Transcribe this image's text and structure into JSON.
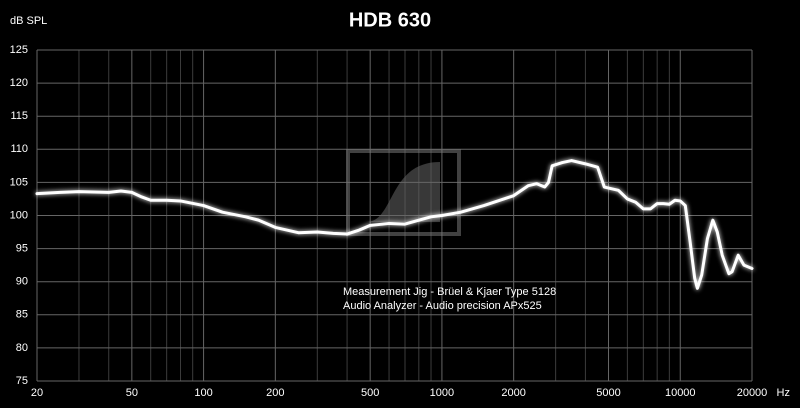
{
  "chart_data": {
    "type": "line",
    "title": "HDB 630",
    "ylabel": "dB SPL",
    "xlabel": "Hz",
    "annotations": [
      "Measurement Jig -  Brüel & Kjaer Type 5128",
      "Audio Analyzer - Audio precision APx525"
    ],
    "log_x": true,
    "grid": true,
    "xlim": [
      20,
      20000
    ],
    "ylim": [
      75,
      125
    ],
    "xticks": [
      20,
      50,
      100,
      200,
      500,
      1000,
      2000,
      5000,
      10000,
      20000
    ],
    "x_minor_grid": [
      30,
      40,
      60,
      70,
      80,
      90,
      300,
      400,
      600,
      700,
      800,
      900,
      3000,
      4000,
      6000,
      7000,
      8000,
      9000
    ],
    "yticks": [
      75,
      80,
      85,
      90,
      95,
      100,
      105,
      110,
      115,
      120,
      125
    ],
    "x": [
      20,
      25,
      30,
      40,
      45,
      50,
      55,
      60,
      70,
      80,
      100,
      120,
      150,
      170,
      200,
      250,
      300,
      350,
      400,
      450,
      500,
      600,
      700,
      800,
      900,
      1000,
      1200,
      1500,
      2000,
      2300,
      2500,
      2700,
      2800,
      2900,
      3200,
      3500,
      4000,
      4500,
      4800,
      5500,
      6000,
      6500,
      7000,
      7500,
      8000,
      8500,
      9000,
      9500,
      10000,
      10500,
      11000,
      11500,
      11800,
      12300,
      13000,
      13700,
      14300,
      15000,
      16000,
      16500,
      17500,
      18500,
      20000
    ],
    "series": [
      {
        "color": "#ffffff",
        "values": [
          103.3,
          103.5,
          103.6,
          103.5,
          103.7,
          103.5,
          102.8,
          102.3,
          102.3,
          102.2,
          101.5,
          100.5,
          99.8,
          99.3,
          98.2,
          97.4,
          97.5,
          97.3,
          97.2,
          97.8,
          98.5,
          98.8,
          98.7,
          99.3,
          99.8,
          100.0,
          100.5,
          101.5,
          103.0,
          104.5,
          104.8,
          104.3,
          105.0,
          107.5,
          108.0,
          108.3,
          107.8,
          107.3,
          104.3,
          103.8,
          102.5,
          102.0,
          101.0,
          101.0,
          101.8,
          101.8,
          101.7,
          102.3,
          102.2,
          101.5,
          96.0,
          90.5,
          89.0,
          91.0,
          96.5,
          99.3,
          97.5,
          94.0,
          91.2,
          91.5,
          94.0,
          92.5,
          92.0
        ]
      }
    ]
  }
}
